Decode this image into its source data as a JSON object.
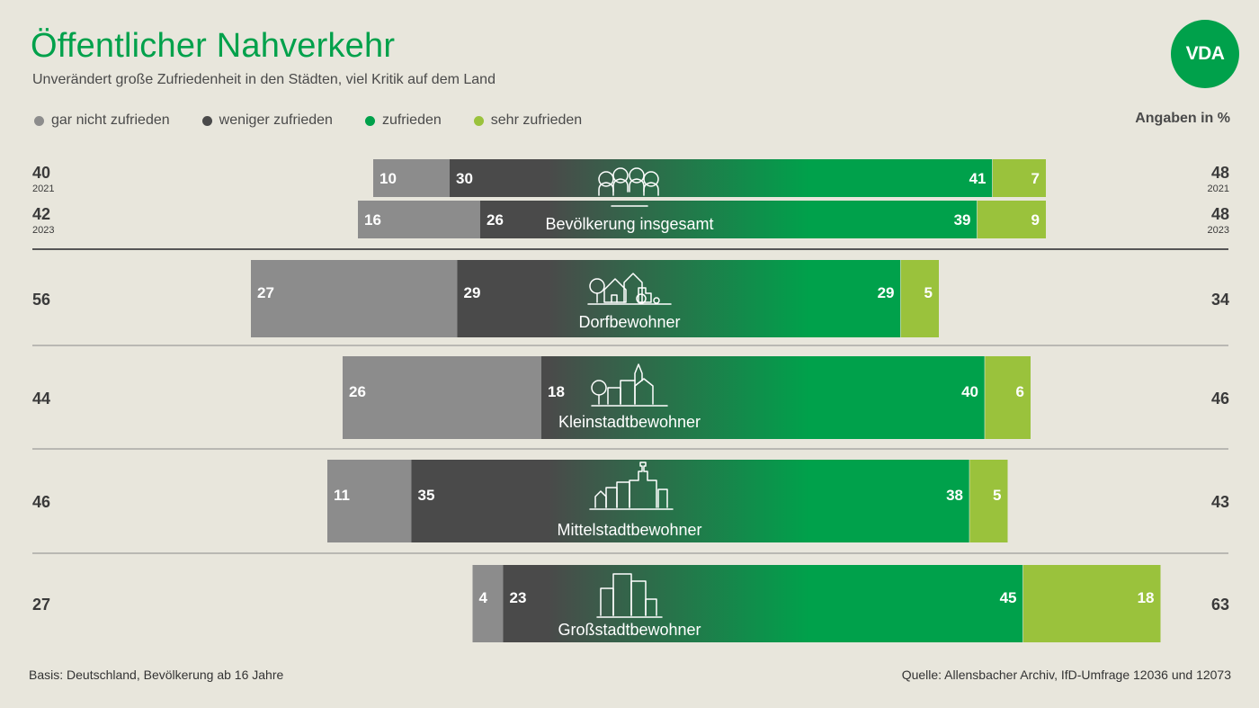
{
  "title": "Öffentlicher Nahverkehr",
  "subtitle": "Unverändert große Zufriedenheit in den Städten, viel Kritik auf dem Land",
  "logo": "VDA",
  "unit_label": "Angaben in %",
  "legend": [
    {
      "label": "gar nicht zufrieden",
      "color": "#8c8c8c"
    },
    {
      "label": "weniger zufrieden",
      "color": "#4a4a4a"
    },
    {
      "label": "zufrieden",
      "color": "#00a14b"
    },
    {
      "label": "sehr zufrieden",
      "color": "#9ac23c"
    }
  ],
  "footer": {
    "basis": "Basis: Deutschland, Bevölkerung ab 16 Jahre",
    "source": "Quelle: Allensbacher Archiv, IfD-Umfrage 12036 und 12073"
  },
  "chart_data": {
    "type": "bar",
    "orientation": "horizontal",
    "stacked": "diverging",
    "series": [
      {
        "name": "gar nicht zufrieden",
        "color": "#8c8c8c"
      },
      {
        "name": "weniger zufrieden",
        "color": "#4a4a4a"
      },
      {
        "name": "zufrieden",
        "color": "#00a14b"
      },
      {
        "name": "sehr zufrieden",
        "color": "#9ac23c"
      }
    ],
    "groups": [
      {
        "label": "Bevölkerung insgesamt",
        "icon": "people-group-icon",
        "rows": [
          {
            "year": "2021",
            "values": [
              10,
              30,
              41,
              7
            ],
            "left_total": 40,
            "right_total": 48
          },
          {
            "year": "2023",
            "values": [
              16,
              26,
              39,
              9
            ],
            "left_total": 42,
            "right_total": 48
          }
        ]
      },
      {
        "label": "Dorfbewohner",
        "icon": "village-icon",
        "rows": [
          {
            "values": [
              27,
              29,
              29,
              5
            ],
            "left_total": 56,
            "right_total": 34
          }
        ]
      },
      {
        "label": "Kleinstadtbewohner",
        "icon": "small-town-icon",
        "rows": [
          {
            "values": [
              26,
              18,
              40,
              6
            ],
            "left_total": 44,
            "right_total": 46
          }
        ]
      },
      {
        "label": "Mittelstadtbewohner",
        "icon": "medium-town-icon",
        "rows": [
          {
            "values": [
              11,
              35,
              38,
              5
            ],
            "left_total": 46,
            "right_total": 43
          }
        ]
      },
      {
        "label": "Großstadtbewohner",
        "icon": "city-icon",
        "rows": [
          {
            "values": [
              4,
              23,
              45,
              18
            ],
            "left_total": 27,
            "right_total": 63
          }
        ]
      }
    ]
  }
}
